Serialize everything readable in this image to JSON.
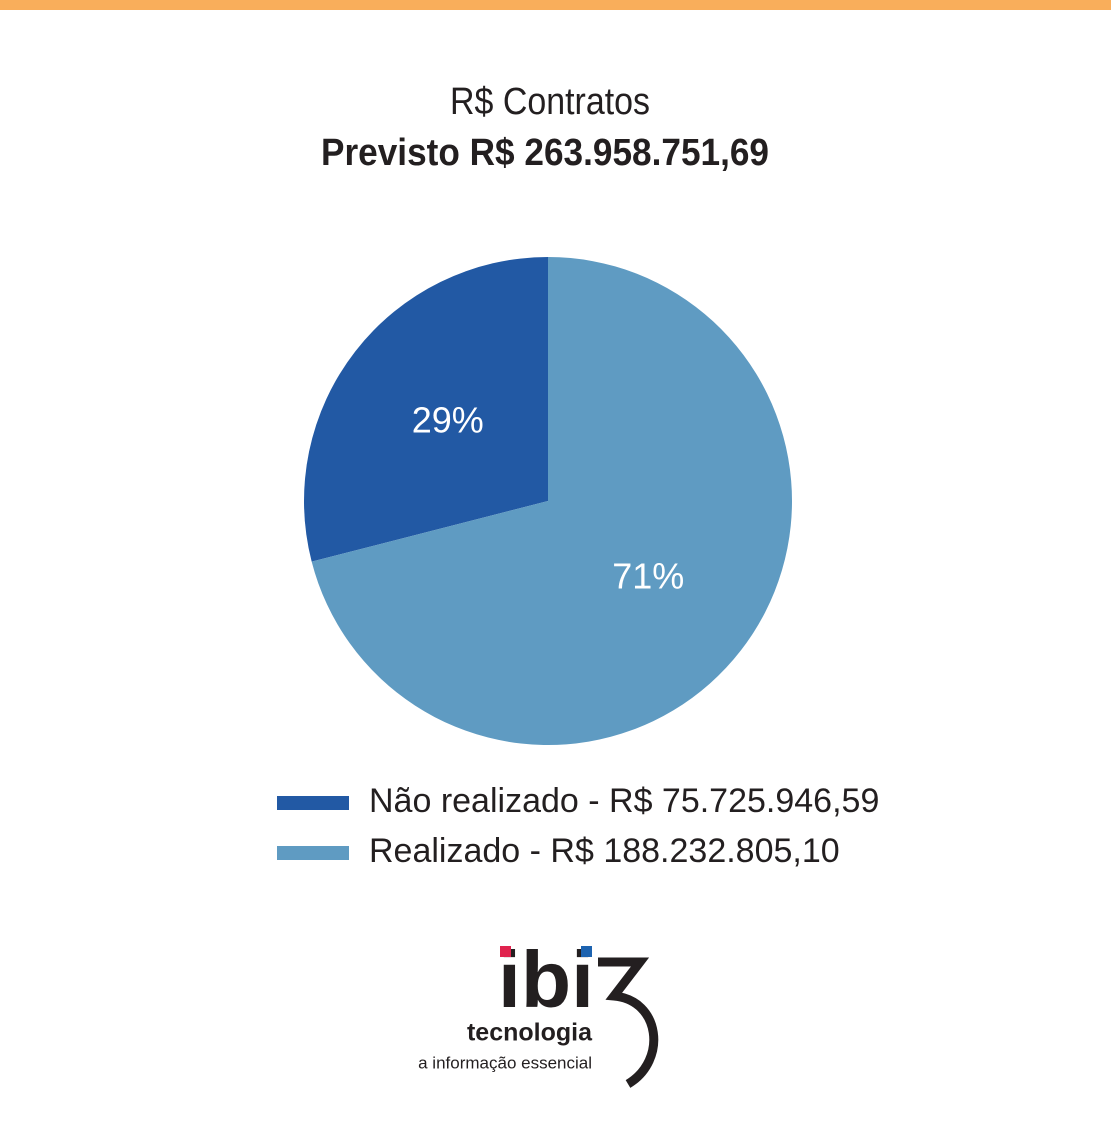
{
  "chart_data": {
    "type": "pie",
    "title": "R$ Contratos",
    "subtitle": "Previsto R$ 263.958.751,69",
    "categories": [
      "Não realizado - R$ 75.725.946,59",
      "Realizado - R$ 188.232.805,10"
    ],
    "values": [
      29,
      71
    ],
    "value_labels": [
      "29%",
      "71%"
    ],
    "colors": [
      "#2259a4",
      "#5f9bc2"
    ]
  },
  "logo": {
    "name": "ibi",
    "subtitle": "tecnologia",
    "tagline": "a informação essencial"
  }
}
